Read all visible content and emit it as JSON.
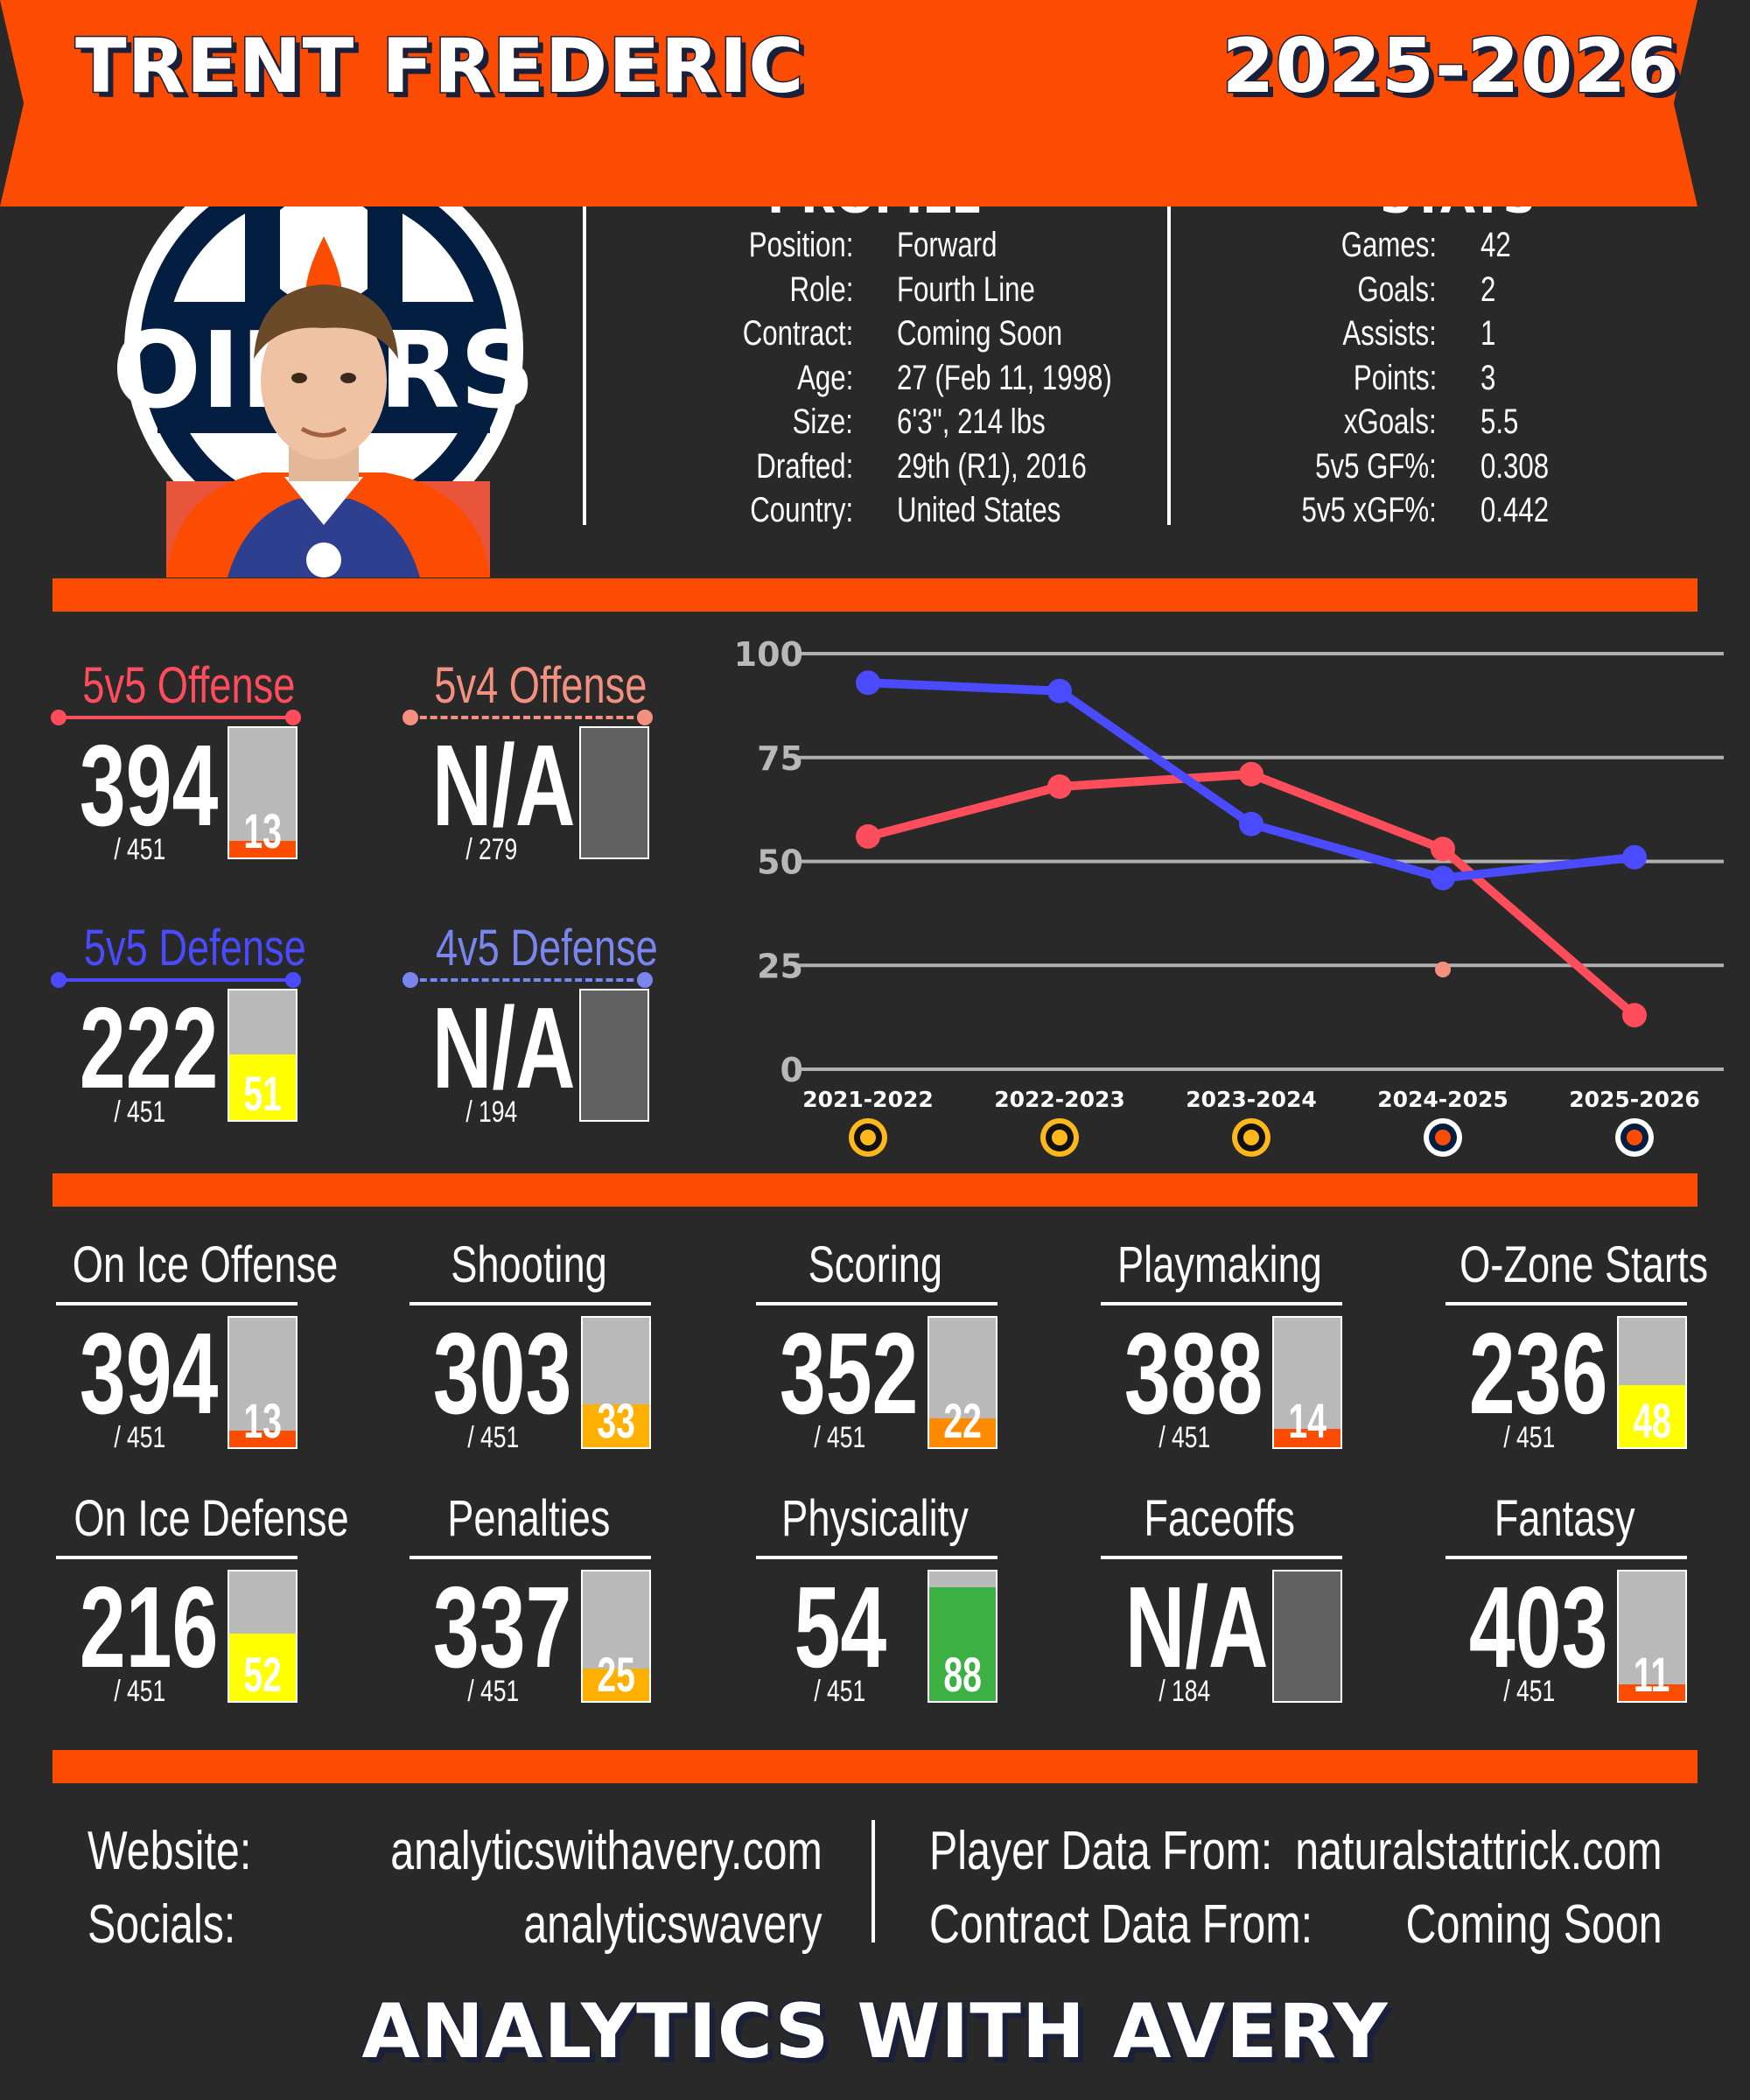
{
  "header": {
    "player_name": "TRENT FREDERIC",
    "season": "2025-2026"
  },
  "colors": {
    "accent": "#fc4c02",
    "background": "#292929",
    "offense": "#ff4d5b",
    "defense": "#4a4aff",
    "pp": "#f4907f",
    "pk": "#7a86ef"
  },
  "team_logo": {
    "icon": "edmonton-oilers-logo",
    "text": "OILERS"
  },
  "profile": {
    "heading": "PROFILE",
    "rows": [
      {
        "label": "Position:",
        "value": "Forward"
      },
      {
        "label": "Role:",
        "value": "Fourth Line"
      },
      {
        "label": "Contract:",
        "value": "Coming Soon"
      },
      {
        "label": "Age:",
        "value": "27 (Feb 11, 1998)"
      },
      {
        "label": "Size:",
        "value": "6'3\", 214 lbs"
      },
      {
        "label": "Drafted:",
        "value": "29th (R1), 2016"
      },
      {
        "label": "Country:",
        "value": "United States"
      }
    ]
  },
  "stats": {
    "heading": "STATS",
    "rows": [
      {
        "label": "Games:",
        "value": "42"
      },
      {
        "label": "Goals:",
        "value": "2"
      },
      {
        "label": "Assists:",
        "value": "1"
      },
      {
        "label": "Points:",
        "value": "3"
      },
      {
        "label": "xGoals:",
        "value": "5.5"
      },
      {
        "label": "5v5 GF%:",
        "value": "0.308"
      },
      {
        "label": "5v5 xGF%:",
        "value": "0.442"
      }
    ]
  },
  "situational": [
    {
      "label": "5v5 Offense",
      "rank": "394",
      "denom": "/ 451",
      "pct": 13,
      "pct_label": "13",
      "color": "#ff4d5b",
      "fill": "#fc4c02",
      "dashed": false
    },
    {
      "label": "5v4 Offense",
      "rank": "N/A",
      "denom": "/ 279",
      "pct": null,
      "pct_label": "",
      "color": "#f4907f",
      "fill": "",
      "dashed": true
    },
    {
      "label": "5v5 Defense",
      "rank": "222",
      "denom": "/ 451",
      "pct": 51,
      "pct_label": "51",
      "color": "#4a4aff",
      "fill": "#ffff00",
      "dashed": false
    },
    {
      "label": "4v5 Defense",
      "rank": "N/A",
      "denom": "/ 194",
      "pct": null,
      "pct_label": "",
      "color": "#7a86ef",
      "fill": "",
      "dashed": true
    }
  ],
  "chart_data": {
    "type": "line",
    "categories": [
      "2021-2022",
      "2022-2023",
      "2023-2024",
      "2024-2025",
      "2025-2026"
    ],
    "team_icons": [
      "bruins-logo-icon",
      "bruins-logo-icon",
      "bruins-logo-icon",
      "oilers-logo-icon",
      "oilers-logo-icon"
    ],
    "yticks": [
      "0",
      "25",
      "50",
      "75",
      "100"
    ],
    "ylim": [
      0,
      100
    ],
    "grid": true,
    "series": [
      {
        "key": "5v5 Offense",
        "color": "#ff4d5b",
        "values": [
          56,
          68,
          71,
          53,
          13
        ]
      },
      {
        "key": "5v5 Defense",
        "color": "#4a4aff",
        "values": [
          93,
          91,
          59,
          46,
          51
        ]
      },
      {
        "key": "5v4 Offense",
        "color": "#f4907f",
        "values": [
          null,
          null,
          null,
          24,
          null
        ]
      }
    ]
  },
  "categories": [
    {
      "label": "On Ice Offense",
      "rank": "394",
      "denom": "/ 451",
      "pct": 13,
      "pct_label": "13",
      "fill": "#fc4c02"
    },
    {
      "label": "Shooting",
      "rank": "303",
      "denom": "/ 451",
      "pct": 33,
      "pct_label": "33",
      "fill": "#ffb000"
    },
    {
      "label": "Scoring",
      "rank": "352",
      "denom": "/ 451",
      "pct": 22,
      "pct_label": "22",
      "fill": "#ff8a00"
    },
    {
      "label": "Playmaking",
      "rank": "388",
      "denom": "/ 451",
      "pct": 14,
      "pct_label": "14",
      "fill": "#fc4c02"
    },
    {
      "label": "O-Zone Starts",
      "rank": "236",
      "denom": "/ 451",
      "pct": 48,
      "pct_label": "48",
      "fill": "#ffff00"
    },
    {
      "label": "On Ice Defense",
      "rank": "216",
      "denom": "/ 451",
      "pct": 52,
      "pct_label": "52",
      "fill": "#ffff00"
    },
    {
      "label": "Penalties",
      "rank": "337",
      "denom": "/ 451",
      "pct": 25,
      "pct_label": "25",
      "fill": "#ffb000"
    },
    {
      "label": "Physicality",
      "rank": "54",
      "denom": "/ 451",
      "pct": 88,
      "pct_label": "88",
      "fill": "#3cb043"
    },
    {
      "label": "Faceoffs",
      "rank": "N/A",
      "denom": "/ 184",
      "pct": null,
      "pct_label": "",
      "fill": ""
    },
    {
      "label": "Fantasy",
      "rank": "403",
      "denom": "/ 451",
      "pct": 11,
      "pct_label": "11",
      "fill": "#fc4c02"
    }
  ],
  "footer": {
    "website_label": "Website:",
    "website": "analyticswithavery.com",
    "socials_label": "Socials:",
    "socials": "analyticswavery",
    "player_data_label": "Player Data From:",
    "player_data": "naturalstattrick.com",
    "contract_data_label": "Contract Data From:",
    "contract_data": "Coming Soon",
    "brand": "ANALYTICS WITH AVERY"
  }
}
